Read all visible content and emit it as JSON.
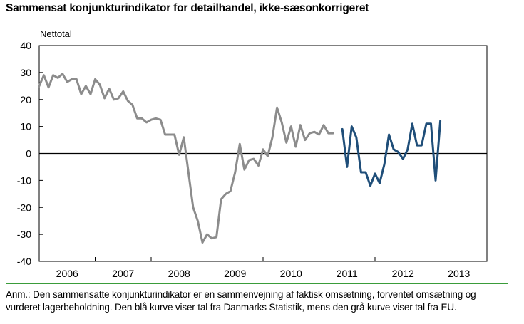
{
  "title": "Sammensat konjunkturindikator for detailhandel, ikke-sæsonkorrigeret",
  "note": "Anm.: Den sammensatte konjunkturindikator er en sammenvejning af faktisk omsætning, forventet omsætning og vurderet lagerbeholdning. Den blå kurve viser tal fra Danmarks Statistik, mens den grå kurve viser tal fra EU.",
  "chart_data": {
    "type": "line",
    "title": "Sammensat konjunkturindikator for detailhandel, ikke-sæsonkorrigeret",
    "ylabel": "Nettotal",
    "xlabel": "",
    "ylim": [
      -40,
      40
    ],
    "yticks": [
      40,
      30,
      20,
      10,
      0,
      -10,
      -20,
      -30,
      -40
    ],
    "xlim": [
      2006,
      2014
    ],
    "xtick_labels": [
      "2006",
      "2007",
      "2008",
      "2009",
      "2010",
      "2011",
      "2012",
      "2013"
    ],
    "grid": false,
    "zero_line": true,
    "colors": {
      "grey_series": "#8c8c8c",
      "blue_series": "#1f4e79",
      "frame": "#000000",
      "rule": "#3a9c3a"
    },
    "series": [
      {
        "color": "grey",
        "points": [
          [
            "2006-01",
            25
          ],
          [
            "2006-02",
            29
          ],
          [
            "2006-03",
            24.5
          ],
          [
            "2006-04",
            29
          ],
          [
            "2006-05",
            28
          ],
          [
            "2006-06",
            29.5
          ],
          [
            "2006-07",
            26.5
          ],
          [
            "2006-08",
            27.5
          ],
          [
            "2006-09",
            27.5
          ],
          [
            "2006-10",
            22
          ],
          [
            "2006-11",
            25
          ],
          [
            "2006-12",
            22
          ],
          [
            "2007-01",
            27.5
          ],
          [
            "2007-02",
            25.5
          ],
          [
            "2007-03",
            20.5
          ],
          [
            "2007-04",
            24
          ],
          [
            "2007-05",
            20
          ],
          [
            "2007-06",
            20.5
          ],
          [
            "2007-07",
            23
          ],
          [
            "2007-08",
            19.5
          ],
          [
            "2007-09",
            18
          ],
          [
            "2007-10",
            13
          ],
          [
            "2007-11",
            13
          ],
          [
            "2007-12",
            11.5
          ],
          [
            "2008-01",
            12.5
          ],
          [
            "2008-02",
            13
          ],
          [
            "2008-03",
            12.5
          ],
          [
            "2008-04",
            7
          ],
          [
            "2008-05",
            7
          ],
          [
            "2008-06",
            7
          ],
          [
            "2008-07",
            -0.5
          ],
          [
            "2008-08",
            6
          ],
          [
            "2008-09",
            -7
          ],
          [
            "2008-10",
            -20
          ],
          [
            "2008-11",
            -25
          ],
          [
            "2008-12",
            -33
          ],
          [
            "2009-01",
            -30
          ],
          [
            "2009-02",
            -31.5
          ],
          [
            "2009-03",
            -31
          ],
          [
            "2009-04",
            -17
          ],
          [
            "2009-05",
            -15
          ],
          [
            "2009-06",
            -14
          ],
          [
            "2009-07",
            -7
          ],
          [
            "2009-08",
            3.5
          ],
          [
            "2009-09",
            -6
          ],
          [
            "2009-10",
            -2.5
          ],
          [
            "2009-11",
            -2
          ],
          [
            "2009-12",
            -4.5
          ],
          [
            "2010-01",
            1.5
          ],
          [
            "2010-02",
            -1
          ],
          [
            "2010-03",
            6
          ],
          [
            "2010-04",
            17
          ],
          [
            "2010-05",
            11.5
          ],
          [
            "2010-06",
            4
          ],
          [
            "2010-07",
            10
          ],
          [
            "2010-08",
            2.5
          ],
          [
            "2010-09",
            10.5
          ],
          [
            "2010-10",
            5
          ],
          [
            "2010-11",
            7.5
          ],
          [
            "2010-12",
            8
          ],
          [
            "2011-01",
            7
          ],
          [
            "2011-02",
            10.5
          ],
          [
            "2011-03",
            7.5
          ],
          [
            "2011-04",
            7.5
          ]
        ]
      },
      {
        "color": "blue",
        "points": [
          [
            "2011-06",
            9
          ],
          [
            "2011-07",
            -5
          ],
          [
            "2011-08",
            10
          ],
          [
            "2011-09",
            6
          ],
          [
            "2011-10",
            -7
          ],
          [
            "2011-11",
            -7
          ],
          [
            "2011-12",
            -12
          ],
          [
            "2012-01",
            -7.5
          ],
          [
            "2012-02",
            -11
          ],
          [
            "2012-03",
            -4
          ],
          [
            "2012-04",
            7
          ],
          [
            "2012-05",
            1.5
          ],
          [
            "2012-06",
            0.5
          ],
          [
            "2012-07",
            -2
          ],
          [
            "2012-08",
            1.5
          ],
          [
            "2012-09",
            11
          ],
          [
            "2012-10",
            3
          ],
          [
            "2012-11",
            3
          ],
          [
            "2012-12",
            11
          ],
          [
            "2013-01",
            11
          ],
          [
            "2013-02",
            -10
          ],
          [
            "2013-03",
            12
          ]
        ]
      }
    ]
  }
}
